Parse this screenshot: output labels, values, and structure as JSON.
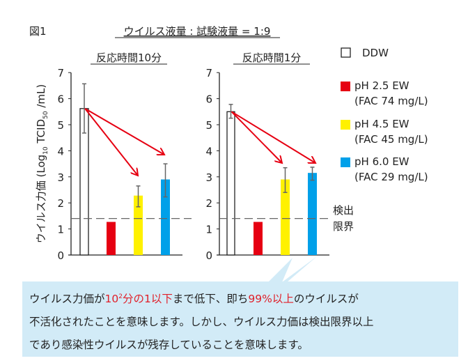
{
  "figure_label": "図1",
  "title": "ウイルス液量 : 試験液量 = 1:9",
  "colors": {
    "DDW": "#ffffff",
    "pH 2.5": "#e60012",
    "pH 4.5": "#fff100",
    "pH 6.0": "#00a0e9",
    "arrow": "#e60012",
    "callout_bg": "#d2ebf7"
  },
  "chart_data": [
    {
      "type": "bar",
      "title": "反応時間10分",
      "ylabel": "ウイルス力価 (Log10 TCID50 /mL)",
      "ylim": [
        0,
        7
      ],
      "yticks": [
        "0",
        "1",
        "2",
        "3",
        "4",
        "5",
        "6",
        "7"
      ],
      "categories": [
        "DDW",
        "pH 2.5 EW",
        "pH 4.5 EW",
        "pH 6.0 EW"
      ],
      "values": [
        5.62,
        1.27,
        2.28,
        2.9
      ],
      "error_low": [
        4.68,
        null,
        1.85,
        2.23
      ],
      "error_high": [
        6.57,
        null,
        2.65,
        3.5
      ],
      "detection_limit": 1.4
    },
    {
      "type": "bar",
      "title": "反応時間1分",
      "ylim": [
        0,
        7
      ],
      "yticks": [
        "0",
        "1",
        "2",
        "3",
        "4",
        "5",
        "6",
        "7"
      ],
      "categories": [
        "DDW",
        "pH 2.5 EW",
        "pH 4.5 EW",
        "pH 6.0 EW"
      ],
      "values": [
        5.5,
        1.27,
        2.9,
        3.15
      ],
      "error_low": [
        5.25,
        null,
        2.4,
        2.87
      ],
      "error_high": [
        5.78,
        null,
        3.35,
        3.37
      ],
      "detection_limit": 1.4
    }
  ],
  "ylabel_parts": {
    "main": "ウイルス力価 (Log",
    "sub1": "10",
    "mid": " TCID",
    "sub2": "50",
    "end": " /mL)"
  },
  "legend": [
    {
      "line1": "DDW",
      "line2": ""
    },
    {
      "line1": "pH 2.5 EW",
      "line2": "(FAC 74 mg/L)"
    },
    {
      "line1": "pH 4.5 EW",
      "line2": "(FAC 45 mg/L)"
    },
    {
      "line1": "pH 6.0 EW",
      "line2": "(FAC 29 mg/L)"
    }
  ],
  "detection_label": {
    "line1": "検出",
    "line2": "限界"
  },
  "callout": {
    "l1a": "ウイルス力価が",
    "l1b": "10",
    "l1sup": "2",
    "l1c": "分の1以下",
    "l1d": "まで低下、即ち",
    "l1e": "99%以上",
    "l1f": "のウイルスが",
    "l2": "不活化されたことを意味します。しかし、ウイルス力価は検出限界以上",
    "l3": "であり感染性ウイルスが残存していることを意味します。"
  }
}
